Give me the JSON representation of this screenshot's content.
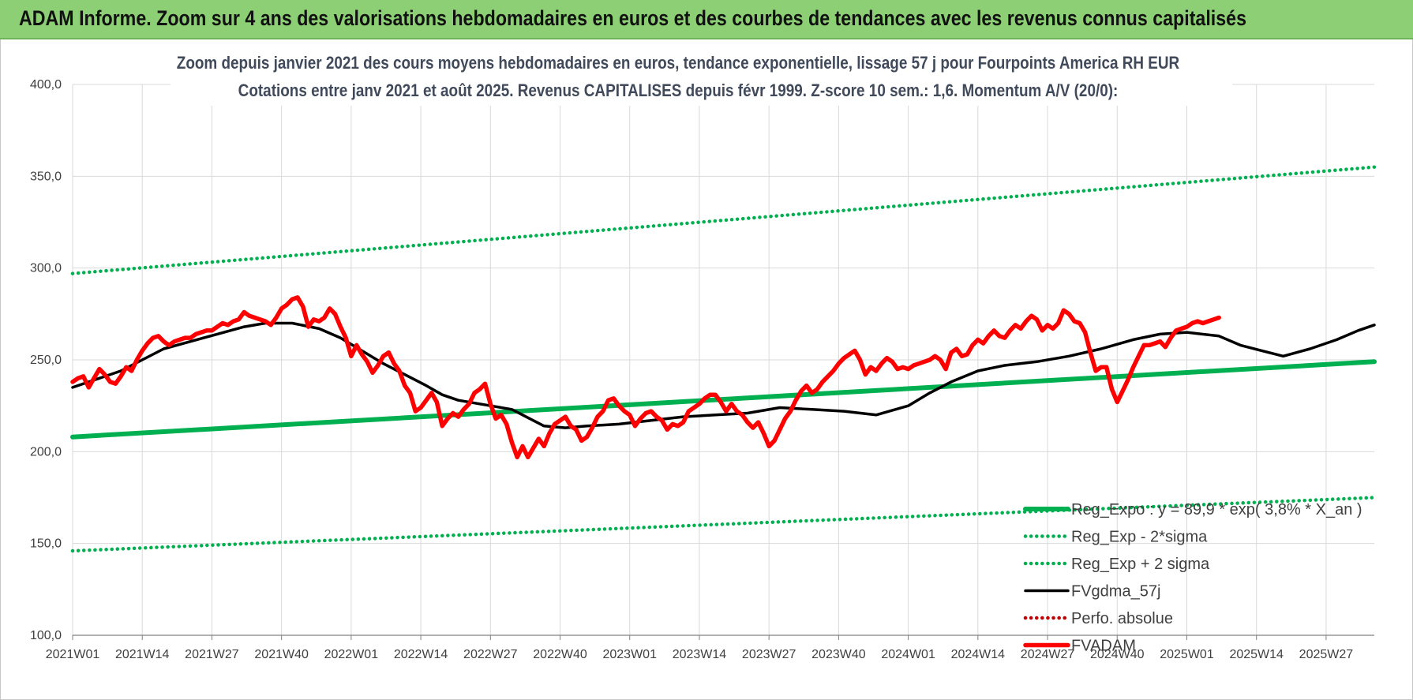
{
  "header": {
    "title": "ADAM Informe. Zoom sur 4 ans des valorisations hebdomadaires en euros et des courbes de tendances avec les revenus connus capitalisés"
  },
  "colors": {
    "banner": "#8ccf74",
    "trend": "#00b050",
    "price": "#ff0000",
    "sma": "#000000",
    "grid": "#d9d9d9"
  },
  "chart_data": {
    "type": "line",
    "subtitle_lines": [
      "Zoom depuis janvier 2021 des cours moyens hebdomadaires en euros, tendance exponentielle, lissage 57 j pour Fourpoints America RH EUR",
      "Cotations entre janv 2021 et août 2025.  Revenus CAPITALISES depuis févr 1999. Z-score 10 sem.: 1,6. Momentum A/V (20/0):"
    ],
    "ylim": [
      100,
      400
    ],
    "y_ticks": [
      "100,0",
      "150,0",
      "200,0",
      "250,0",
      "300,0",
      "350,0",
      "400,0"
    ],
    "x_ticks": [
      "2021W01",
      "2021W14",
      "2021W27",
      "2021W40",
      "2022W01",
      "2022W14",
      "2022W27",
      "2022W40",
      "2023W01",
      "2023W14",
      "2023W27",
      "2023W40",
      "2024W01",
      "2024W14",
      "2024W27",
      "2024W40",
      "2025W01",
      "2025W14",
      "2025W27"
    ],
    "x_range_weeks": [
      0,
      243
    ],
    "grid": true,
    "legend_position": "bottom-right",
    "series": [
      {
        "name": "Reg_Expo : y = 89,9 * exp( 3,8% *  X_an )",
        "style": "solid-thick",
        "color": "#00b050",
        "points": [
          [
            0,
            208
          ],
          [
            243,
            249
          ]
        ]
      },
      {
        "name": "Reg_Exp - 2*sigma",
        "style": "dotted",
        "color": "#00b050",
        "points": [
          [
            0,
            146
          ],
          [
            243,
            175
          ]
        ]
      },
      {
        "name": "Reg_Exp + 2 sigma",
        "style": "dotted",
        "color": "#00b050",
        "points": [
          [
            0,
            297
          ],
          [
            243,
            355
          ]
        ]
      },
      {
        "name": "FVgdma_57j",
        "style": "solid",
        "color": "#000000",
        "points": [
          [
            0,
            235
          ],
          [
            5,
            240
          ],
          [
            9,
            244
          ],
          [
            13,
            250
          ],
          [
            17,
            256
          ],
          [
            22,
            260
          ],
          [
            27,
            264
          ],
          [
            32,
            268
          ],
          [
            36,
            270
          ],
          [
            41,
            270
          ],
          [
            46,
            267
          ],
          [
            50,
            262
          ],
          [
            54,
            255
          ],
          [
            58,
            248
          ],
          [
            62,
            242
          ],
          [
            66,
            236
          ],
          [
            69,
            231
          ],
          [
            72,
            228
          ],
          [
            76,
            226
          ],
          [
            82,
            223
          ],
          [
            86,
            217
          ],
          [
            88,
            214
          ],
          [
            92,
            213
          ],
          [
            96,
            214
          ],
          [
            102,
            215
          ],
          [
            108,
            217
          ],
          [
            114,
            219
          ],
          [
            120,
            220
          ],
          [
            126,
            221
          ],
          [
            132,
            224
          ],
          [
            138,
            223
          ],
          [
            144,
            222
          ],
          [
            150,
            220
          ],
          [
            156,
            225
          ],
          [
            160,
            232
          ],
          [
            164,
            238
          ],
          [
            169,
            244
          ],
          [
            174,
            247
          ],
          [
            180,
            249
          ],
          [
            186,
            252
          ],
          [
            192,
            256
          ],
          [
            198,
            261
          ],
          [
            203,
            264
          ],
          [
            208,
            265
          ],
          [
            214,
            263
          ],
          [
            218,
            258
          ],
          [
            222,
            255
          ],
          [
            226,
            252
          ],
          [
            231,
            256
          ],
          [
            236,
            261
          ],
          [
            240,
            266
          ],
          [
            243,
            269
          ]
        ]
      },
      {
        "name": "Perfo. absolue",
        "style": "dotted",
        "color": "#c00000",
        "points": []
      },
      {
        "name": "FVADAM",
        "style": "solid-thick",
        "color": "#ff0000",
        "points": [
          [
            0,
            238
          ],
          [
            1,
            240
          ],
          [
            2,
            241
          ],
          [
            3,
            235
          ],
          [
            4,
            240
          ],
          [
            5,
            245
          ],
          [
            6,
            242
          ],
          [
            7,
            238
          ],
          [
            8,
            237
          ],
          [
            9,
            241
          ],
          [
            10,
            246
          ],
          [
            11,
            244
          ],
          [
            12,
            250
          ],
          [
            13,
            255
          ],
          [
            14,
            259
          ],
          [
            15,
            262
          ],
          [
            16,
            263
          ],
          [
            17,
            260
          ],
          [
            18,
            258
          ],
          [
            19,
            260
          ],
          [
            20,
            261
          ],
          [
            21,
            262
          ],
          [
            22,
            262
          ],
          [
            23,
            264
          ],
          [
            24,
            265
          ],
          [
            25,
            266
          ],
          [
            26,
            266
          ],
          [
            27,
            268
          ],
          [
            28,
            270
          ],
          [
            29,
            269
          ],
          [
            30,
            271
          ],
          [
            31,
            272
          ],
          [
            32,
            276
          ],
          [
            33,
            274
          ],
          [
            34,
            273
          ],
          [
            35,
            272
          ],
          [
            36,
            271
          ],
          [
            37,
            269
          ],
          [
            38,
            273
          ],
          [
            39,
            278
          ],
          [
            40,
            280
          ],
          [
            41,
            283
          ],
          [
            42,
            284
          ],
          [
            43,
            279
          ],
          [
            44,
            268
          ],
          [
            45,
            272
          ],
          [
            46,
            271
          ],
          [
            47,
            273
          ],
          [
            48,
            278
          ],
          [
            49,
            275
          ],
          [
            50,
            268
          ],
          [
            51,
            262
          ],
          [
            52,
            252
          ],
          [
            53,
            258
          ],
          [
            54,
            253
          ],
          [
            55,
            249
          ],
          [
            56,
            243
          ],
          [
            57,
            247
          ],
          [
            58,
            252
          ],
          [
            59,
            254
          ],
          [
            60,
            248
          ],
          [
            61,
            244
          ],
          [
            62,
            236
          ],
          [
            63,
            232
          ],
          [
            64,
            222
          ],
          [
            65,
            224
          ],
          [
            66,
            228
          ],
          [
            67,
            232
          ],
          [
            68,
            227
          ],
          [
            69,
            214
          ],
          [
            70,
            218
          ],
          [
            71,
            221
          ],
          [
            72,
            219
          ],
          [
            73,
            223
          ],
          [
            74,
            226
          ],
          [
            75,
            232
          ],
          [
            76,
            234
          ],
          [
            77,
            237
          ],
          [
            78,
            226
          ],
          [
            79,
            218
          ],
          [
            80,
            220
          ],
          [
            81,
            215
          ],
          [
            82,
            205
          ],
          [
            83,
            197
          ],
          [
            84,
            203
          ],
          [
            85,
            197
          ],
          [
            86,
            202
          ],
          [
            87,
            207
          ],
          [
            88,
            203
          ],
          [
            89,
            210
          ],
          [
            90,
            215
          ],
          [
            91,
            217
          ],
          [
            92,
            219
          ],
          [
            93,
            214
          ],
          [
            94,
            212
          ],
          [
            95,
            206
          ],
          [
            96,
            208
          ],
          [
            97,
            213
          ],
          [
            98,
            219
          ],
          [
            99,
            222
          ],
          [
            100,
            228
          ],
          [
            101,
            229
          ],
          [
            102,
            225
          ],
          [
            103,
            222
          ],
          [
            104,
            220
          ],
          [
            105,
            214
          ],
          [
            106,
            218
          ],
          [
            107,
            221
          ],
          [
            108,
            222
          ],
          [
            109,
            219
          ],
          [
            110,
            217
          ],
          [
            111,
            212
          ],
          [
            112,
            215
          ],
          [
            113,
            214
          ],
          [
            114,
            216
          ],
          [
            115,
            222
          ],
          [
            116,
            224
          ],
          [
            117,
            226
          ],
          [
            118,
            229
          ],
          [
            119,
            231
          ],
          [
            120,
            231
          ],
          [
            121,
            227
          ],
          [
            122,
            222
          ],
          [
            123,
            226
          ],
          [
            124,
            222
          ],
          [
            125,
            220
          ],
          [
            126,
            216
          ],
          [
            127,
            213
          ],
          [
            128,
            216
          ],
          [
            129,
            210
          ],
          [
            130,
            203
          ],
          [
            131,
            206
          ],
          [
            132,
            212
          ],
          [
            133,
            218
          ],
          [
            134,
            222
          ],
          [
            135,
            228
          ],
          [
            136,
            233
          ],
          [
            137,
            236
          ],
          [
            138,
            232
          ],
          [
            139,
            234
          ],
          [
            140,
            238
          ],
          [
            141,
            241
          ],
          [
            142,
            244
          ],
          [
            143,
            248
          ],
          [
            144,
            251
          ],
          [
            145,
            253
          ],
          [
            146,
            255
          ],
          [
            147,
            250
          ],
          [
            148,
            242
          ],
          [
            149,
            246
          ],
          [
            150,
            244
          ],
          [
            151,
            248
          ],
          [
            152,
            251
          ],
          [
            153,
            249
          ],
          [
            154,
            245
          ],
          [
            155,
            246
          ],
          [
            156,
            245
          ],
          [
            157,
            247
          ],
          [
            158,
            248
          ],
          [
            159,
            249
          ],
          [
            160,
            250
          ],
          [
            161,
            252
          ],
          [
            162,
            250
          ],
          [
            163,
            245
          ],
          [
            164,
            254
          ],
          [
            165,
            256
          ],
          [
            166,
            252
          ],
          [
            167,
            253
          ],
          [
            168,
            258
          ],
          [
            169,
            261
          ],
          [
            170,
            259
          ],
          [
            171,
            263
          ],
          [
            172,
            266
          ],
          [
            173,
            263
          ],
          [
            174,
            262
          ],
          [
            175,
            266
          ],
          [
            176,
            269
          ],
          [
            177,
            267
          ],
          [
            178,
            271
          ],
          [
            179,
            274
          ],
          [
            180,
            272
          ],
          [
            181,
            266
          ],
          [
            182,
            269
          ],
          [
            183,
            267
          ],
          [
            184,
            270
          ],
          [
            185,
            277
          ],
          [
            186,
            275
          ],
          [
            187,
            271
          ],
          [
            188,
            270
          ],
          [
            189,
            265
          ],
          [
            190,
            254
          ],
          [
            191,
            244
          ],
          [
            192,
            246
          ],
          [
            193,
            246
          ],
          [
            194,
            234
          ],
          [
            195,
            227
          ],
          [
            196,
            233
          ],
          [
            197,
            239
          ],
          [
            198,
            246
          ],
          [
            199,
            252
          ],
          [
            200,
            258
          ],
          [
            201,
            258
          ],
          [
            202,
            259
          ],
          [
            203,
            260
          ],
          [
            204,
            257
          ],
          [
            205,
            262
          ],
          [
            206,
            266
          ],
          [
            207,
            267
          ],
          [
            208,
            268
          ],
          [
            209,
            270
          ],
          [
            210,
            271
          ],
          [
            211,
            270
          ],
          [
            212,
            271
          ],
          [
            213,
            272
          ],
          [
            214,
            273
          ]
        ]
      }
    ]
  }
}
